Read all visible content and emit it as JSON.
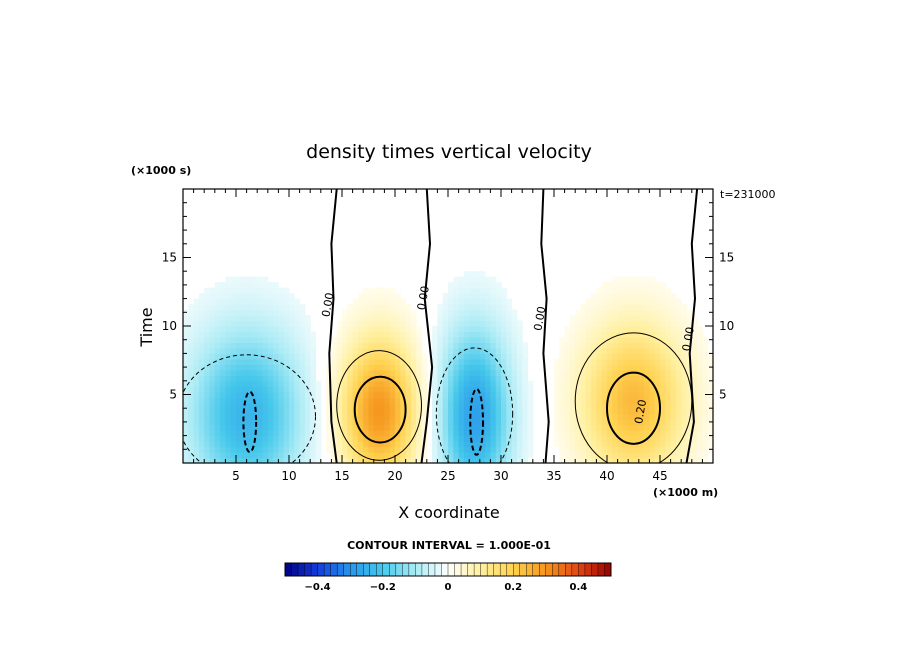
{
  "chart_data": {
    "type": "heatmap",
    "title": "density times vertical velocity",
    "xlabel": "X coordinate",
    "ylabel": "Time",
    "x_unit_label": "(×1000 m)",
    "y_unit_label": "(×1000 s)",
    "time_stamp": "t=231000",
    "xlim": [
      0,
      50
    ],
    "ylim": [
      0,
      20
    ],
    "x_ticks": [
      5,
      10,
      15,
      20,
      25,
      30,
      35,
      40,
      45
    ],
    "y_ticks": [
      5,
      10,
      15
    ],
    "x_tick_labels": [
      "5",
      "10",
      "15",
      "20",
      "25",
      "30",
      "35",
      "40",
      "45"
    ],
    "y_tick_labels": [
      "5",
      "10",
      "15"
    ],
    "contour_interval_label": "CONTOUR INTERVAL = 1.000E-01",
    "contour_labels": [
      {
        "text": "0.00",
        "x": 14.0,
        "y": 11.5
      },
      {
        "text": "0.00",
        "x": 23.0,
        "y": 12.0
      },
      {
        "text": "0.00",
        "x": 34.0,
        "y": 10.5
      },
      {
        "text": "0.00",
        "x": 48.0,
        "y": 9.0
      },
      {
        "text": "0.20",
        "x": 43.5,
        "y": 3.7
      }
    ],
    "field_features": [
      {
        "kind": "updraft",
        "x": 18.5,
        "y": 3.8,
        "sx": 3.8,
        "sy": 5.5,
        "amp": 0.3
      },
      {
        "kind": "updraft",
        "x": 42.5,
        "y": 4.5,
        "sx": 5.0,
        "sy": 5.8,
        "amp": 0.24
      },
      {
        "kind": "downdraft",
        "x": 6.0,
        "y": 3.5,
        "sx": 5.5,
        "sy": 6.5,
        "amp": -0.24
      },
      {
        "kind": "downdraft",
        "x": 27.5,
        "y": 3.5,
        "sx": 3.5,
        "sy": 6.5,
        "amp": -0.28
      }
    ],
    "colorbar": {
      "range": [
        -0.5,
        0.5
      ],
      "tick_values": [
        -0.4,
        -0.2,
        0,
        0.2,
        0.4
      ],
      "tick_labels": [
        "−0.4",
        "−0.2",
        "0",
        "0.2",
        "0.4"
      ]
    }
  }
}
